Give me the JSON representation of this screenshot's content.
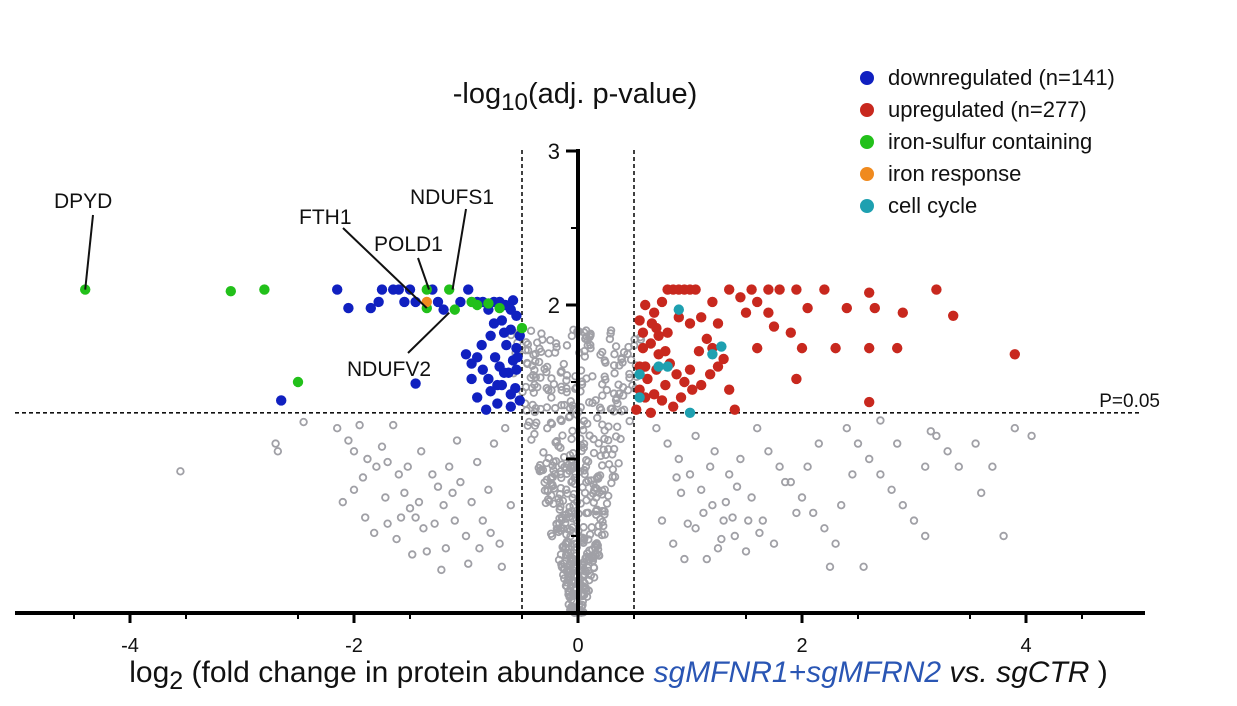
{
  "chart_data": {
    "type": "scatter",
    "title": "",
    "ylabel": {
      "prefix": "-log",
      "sub": "10",
      "suffix": "(adj.  p-value)"
    },
    "xlabel": {
      "prefix": "log",
      "sub": "2",
      "mid": " (fold change in protein abundance ",
      "cond": "sgMFNR1+sgMFRN2",
      "vs": " vs. ",
      "ctrl": "sgCTR",
      "end": " )"
    },
    "xlim": [
      -5,
      5
    ],
    "ylim": [
      0,
      3
    ],
    "x_ticks": [
      -4,
      -2,
      0,
      2,
      4
    ],
    "x_tick_labels": [
      "-4",
      "-2",
      "0",
      "2",
      "4"
    ],
    "y_ticks": [
      1,
      2,
      3
    ],
    "y_tick_labels": [
      "",
      "2",
      "3"
    ],
    "threshold_y": 1.3,
    "threshold_label": "P=0.05",
    "fold_lines": [
      -0.5,
      0.5
    ],
    "grid": false,
    "legend_position": "top-right",
    "colors": {
      "downregulated": "#1020c0",
      "upregulated": "#c8281e",
      "iron_sulfur": "#22c01a",
      "iron_response": "#f08a1e",
      "cell_cycle": "#1ea0b0",
      "background": "#a0a0a6"
    },
    "legend": [
      {
        "label": "downregulated (n=141)",
        "color_key": "downregulated"
      },
      {
        "label": "upregulated (n=277)",
        "color_key": "upregulated"
      },
      {
        "label": "iron-sulfur containing",
        "color_key": "iron_sulfur"
      },
      {
        "label": "iron response",
        "color_key": "iron_response"
      },
      {
        "label": "cell cycle",
        "color_key": "cell_cycle"
      }
    ],
    "annotations": [
      {
        "label": "DPYD",
        "x": -4.4,
        "y": 2.1
      },
      {
        "label": "FTH1",
        "x": -1.35,
        "y": 1.98
      },
      {
        "label": "POLD1",
        "x": -1.33,
        "y": 2.1
      },
      {
        "label": "NDUFS1",
        "x": -1.12,
        "y": 2.1
      },
      {
        "label": "NDUFV2",
        "x": -1.15,
        "y": 1.95
      }
    ],
    "series": {
      "downregulated": [
        [
          -2.65,
          1.38
        ],
        [
          -1.45,
          1.49
        ],
        [
          -2.15,
          2.1
        ],
        [
          -2.05,
          1.98
        ],
        [
          -1.85,
          1.98
        ],
        [
          -1.75,
          2.1
        ],
        [
          -1.65,
          2.1
        ],
        [
          -1.6,
          2.1
        ],
        [
          -1.78,
          2.02
        ],
        [
          -1.55,
          2.02
        ],
        [
          -1.5,
          2.1
        ],
        [
          -1.45,
          2.02
        ],
        [
          -1.3,
          2.1
        ],
        [
          -1.25,
          2.02
        ],
        [
          -1.2,
          1.97
        ],
        [
          -1.05,
          2.02
        ],
        [
          -0.98,
          2.1
        ],
        [
          -0.9,
          2.02
        ],
        [
          -0.85,
          2.02
        ],
        [
          -0.8,
          1.97
        ],
        [
          -0.75,
          2.02
        ],
        [
          -0.7,
          2.02
        ],
        [
          -0.65,
          2.0
        ],
        [
          -0.6,
          1.97
        ],
        [
          -0.55,
          1.93
        ],
        [
          -0.58,
          2.03
        ],
        [
          -1.0,
          1.68
        ],
        [
          -0.95,
          1.62
        ],
        [
          -0.9,
          1.66
        ],
        [
          -0.85,
          1.58
        ],
        [
          -0.8,
          1.52
        ],
        [
          -0.78,
          1.44
        ],
        [
          -0.72,
          1.36
        ],
        [
          -0.68,
          1.48
        ],
        [
          -0.62,
          1.56
        ],
        [
          -0.58,
          1.64
        ],
        [
          -0.55,
          1.72
        ],
        [
          -0.52,
          1.8
        ],
        [
          -0.75,
          1.88
        ],
        [
          -0.68,
          1.9
        ],
        [
          -0.6,
          1.84
        ],
        [
          -0.55,
          1.58
        ],
        [
          -0.9,
          1.4
        ],
        [
          -0.82,
          1.32
        ],
        [
          -0.7,
          1.6
        ],
        [
          -0.64,
          1.74
        ],
        [
          -0.56,
          1.46
        ],
        [
          -0.52,
          1.38
        ],
        [
          -0.95,
          1.52
        ],
        [
          -0.74,
          1.66
        ],
        [
          -0.66,
          1.82
        ],
        [
          -0.6,
          1.42
        ],
        [
          -0.86,
          1.74
        ],
        [
          -0.78,
          1.8
        ],
        [
          -0.54,
          1.66
        ],
        [
          -0.6,
          1.34
        ],
        [
          -0.72,
          1.48
        ],
        [
          -0.66,
          1.56
        ]
      ],
      "upregulated": [
        [
          0.52,
          1.32
        ],
        [
          0.55,
          1.45
        ],
        [
          0.6,
          1.6
        ],
        [
          0.65,
          1.75
        ],
        [
          0.7,
          1.85
        ],
        [
          0.55,
          1.9
        ],
        [
          0.6,
          2.0
        ],
        [
          0.68,
          1.95
        ],
        [
          0.75,
          2.02
        ],
        [
          0.8,
          2.1
        ],
        [
          0.85,
          2.1
        ],
        [
          0.9,
          2.1
        ],
        [
          0.95,
          2.1
        ],
        [
          1.0,
          2.1
        ],
        [
          1.05,
          2.1
        ],
        [
          0.72,
          1.8
        ],
        [
          0.78,
          1.7
        ],
        [
          0.82,
          1.62
        ],
        [
          0.88,
          1.55
        ],
        [
          0.95,
          1.5
        ],
        [
          1.02,
          1.45
        ],
        [
          1.1,
          1.48
        ],
        [
          1.18,
          1.55
        ],
        [
          1.25,
          1.6
        ],
        [
          1.3,
          1.65
        ],
        [
          0.58,
          1.72
        ],
        [
          0.62,
          1.52
        ],
        [
          0.68,
          1.42
        ],
        [
          0.75,
          1.38
        ],
        [
          0.85,
          1.34
        ],
        [
          0.92,
          1.4
        ],
        [
          1.0,
          1.58
        ],
        [
          1.08,
          1.7
        ],
        [
          1.15,
          1.78
        ],
        [
          0.6,
          1.4
        ],
        [
          0.7,
          1.58
        ],
        [
          0.8,
          1.82
        ],
        [
          0.9,
          1.92
        ],
        [
          1.0,
          1.88
        ],
        [
          0.55,
          1.6
        ],
        [
          0.65,
          1.3
        ],
        [
          0.78,
          1.48
        ],
        [
          1.35,
          2.1
        ],
        [
          1.45,
          2.05
        ],
        [
          1.55,
          2.1
        ],
        [
          1.6,
          2.02
        ],
        [
          1.7,
          2.1
        ],
        [
          1.8,
          2.1
        ],
        [
          1.95,
          2.1
        ],
        [
          2.2,
          2.1
        ],
        [
          2.6,
          2.08
        ],
        [
          2.65,
          1.98
        ],
        [
          1.5,
          1.95
        ],
        [
          1.7,
          1.95
        ],
        [
          2.05,
          1.98
        ],
        [
          2.4,
          1.98
        ],
        [
          2.9,
          1.95
        ],
        [
          3.2,
          2.1
        ],
        [
          3.35,
          1.93
        ],
        [
          1.2,
          1.72
        ],
        [
          1.6,
          1.72
        ],
        [
          2.0,
          1.72
        ],
        [
          2.3,
          1.72
        ],
        [
          2.6,
          1.72
        ],
        [
          2.85,
          1.72
        ],
        [
          3.9,
          1.68
        ],
        [
          1.9,
          1.82
        ],
        [
          1.75,
          1.86
        ],
        [
          1.35,
          1.45
        ],
        [
          1.4,
          1.32
        ],
        [
          1.95,
          1.52
        ],
        [
          2.6,
          1.37
        ],
        [
          1.25,
          1.88
        ],
        [
          1.1,
          1.92
        ],
        [
          1.2,
          2.02
        ],
        [
          0.72,
          1.68
        ],
        [
          0.58,
          1.82
        ],
        [
          0.66,
          1.88
        ]
      ],
      "iron_sulfur": [
        [
          -4.4,
          2.1
        ],
        [
          -3.1,
          2.09
        ],
        [
          -2.8,
          2.1
        ],
        [
          -2.5,
          1.5
        ],
        [
          -1.35,
          2.1
        ],
        [
          -1.35,
          1.98
        ],
        [
          -1.15,
          2.1
        ],
        [
          -1.1,
          1.97
        ],
        [
          -0.95,
          2.02
        ],
        [
          -0.9,
          2.0
        ],
        [
          -0.8,
          2.01
        ],
        [
          -0.7,
          1.98
        ],
        [
          -0.5,
          1.85
        ]
      ],
      "iron_response": [
        [
          -1.35,
          2.02
        ]
      ],
      "cell_cycle": [
        [
          0.55,
          1.4
        ],
        [
          0.72,
          1.6
        ],
        [
          0.8,
          1.6
        ],
        [
          0.9,
          1.97
        ],
        [
          1.2,
          1.68
        ],
        [
          1.28,
          1.73
        ],
        [
          1.0,
          1.3
        ],
        [
          0.55,
          1.55
        ]
      ],
      "background": [
        [
          -3.55,
          0.92
        ],
        [
          -2.7,
          1.1
        ],
        [
          -2.68,
          1.05
        ],
        [
          -2.45,
          1.24
        ],
        [
          -2.15,
          1.2
        ],
        [
          -2.05,
          1.12
        ],
        [
          -1.95,
          1.22
        ],
        [
          -1.88,
          1.0
        ],
        [
          -1.8,
          0.95
        ],
        [
          -1.75,
          1.08
        ],
        [
          -1.7,
          0.98
        ],
        [
          -1.65,
          1.22
        ],
        [
          -1.6,
          0.9
        ],
        [
          -1.55,
          0.78
        ],
        [
          -1.5,
          0.68
        ],
        [
          -1.45,
          0.62
        ],
        [
          -1.42,
          0.72
        ],
        [
          -1.38,
          0.55
        ],
        [
          -1.35,
          0.4
        ],
        [
          -1.3,
          0.9
        ],
        [
          -1.25,
          0.82
        ],
        [
          -1.2,
          0.7
        ],
        [
          -1.15,
          0.95
        ],
        [
          -1.1,
          0.6
        ],
        [
          -1.05,
          0.85
        ],
        [
          -1.0,
          0.5
        ],
        [
          -0.95,
          0.72
        ],
        [
          -0.9,
          0.98
        ],
        [
          -0.85,
          0.6
        ],
        [
          -0.8,
          0.8
        ],
        [
          -0.75,
          1.1
        ],
        [
          -0.7,
          0.45
        ],
        [
          -0.65,
          1.2
        ],
        [
          -0.6,
          0.7
        ],
        [
          -2.0,
          0.8
        ],
        [
          -1.9,
          0.62
        ],
        [
          -1.82,
          0.52
        ],
        [
          -1.72,
          0.75
        ],
        [
          -1.62,
          0.48
        ],
        [
          -1.52,
          0.95
        ],
        [
          -1.4,
          1.05
        ],
        [
          -1.28,
          0.58
        ],
        [
          -1.18,
          0.42
        ],
        [
          -1.08,
          1.12
        ],
        [
          -0.98,
          0.32
        ],
        [
          -0.88,
          0.42
        ],
        [
          -0.78,
          0.52
        ],
        [
          -0.68,
          0.3
        ],
        [
          -1.7,
          0.58
        ],
        [
          -1.58,
          0.62
        ],
        [
          -1.48,
          0.38
        ],
        [
          -1.22,
          0.28
        ],
        [
          -1.12,
          0.78
        ],
        [
          -2.1,
          0.72
        ],
        [
          -2.0,
          1.05
        ],
        [
          -1.92,
          0.88
        ],
        [
          0.7,
          1.2
        ],
        [
          0.8,
          1.1
        ],
        [
          0.9,
          1.0
        ],
        [
          1.0,
          0.9
        ],
        [
          1.1,
          0.8
        ],
        [
          1.2,
          0.7
        ],
        [
          1.3,
          0.6
        ],
        [
          1.4,
          0.5
        ],
        [
          1.5,
          0.4
        ],
        [
          1.6,
          1.2
        ],
        [
          1.7,
          1.05
        ],
        [
          1.8,
          0.95
        ],
        [
          1.9,
          0.85
        ],
        [
          2.0,
          0.75
        ],
        [
          2.1,
          0.65
        ],
        [
          2.2,
          0.55
        ],
        [
          2.3,
          0.45
        ],
        [
          2.4,
          1.2
        ],
        [
          2.5,
          1.1
        ],
        [
          2.6,
          1.0
        ],
        [
          2.7,
          0.9
        ],
        [
          2.8,
          0.8
        ],
        [
          2.9,
          0.7
        ],
        [
          3.0,
          0.6
        ],
        [
          3.1,
          0.5
        ],
        [
          3.2,
          1.15
        ],
        [
          3.3,
          1.05
        ],
        [
          3.4,
          0.95
        ],
        [
          3.6,
          0.78
        ],
        [
          3.8,
          0.5
        ],
        [
          0.75,
          0.6
        ],
        [
          0.85,
          0.45
        ],
        [
          0.95,
          0.35
        ],
        [
          1.05,
          1.15
        ],
        [
          1.15,
          0.35
        ],
        [
          1.25,
          0.42
        ],
        [
          1.35,
          0.9
        ],
        [
          1.45,
          1.0
        ],
        [
          1.55,
          0.75
        ],
        [
          1.65,
          0.6
        ],
        [
          1.75,
          0.45
        ],
        [
          1.85,
          0.85
        ],
        [
          1.95,
          0.65
        ],
        [
          2.05,
          0.95
        ],
        [
          2.15,
          1.1
        ],
        [
          2.25,
          0.3
        ],
        [
          2.35,
          0.7
        ],
        [
          2.45,
          0.9
        ],
        [
          2.55,
          0.3
        ],
        [
          1.05,
          0.55
        ],
        [
          1.12,
          0.65
        ],
        [
          1.22,
          1.05
        ],
        [
          1.32,
          0.72
        ],
        [
          1.42,
          0.82
        ],
        [
          1.52,
          0.6
        ],
        [
          1.62,
          0.52
        ],
        [
          0.92,
          0.78
        ],
        [
          0.98,
          0.58
        ],
        [
          0.88,
          0.88
        ],
        [
          1.18,
          0.95
        ],
        [
          1.28,
          0.48
        ],
        [
          1.38,
          0.62
        ],
        [
          2.7,
          1.25
        ],
        [
          2.85,
          1.1
        ],
        [
          3.1,
          0.95
        ],
        [
          3.15,
          1.18
        ],
        [
          3.55,
          1.1
        ],
        [
          3.9,
          1.2
        ],
        [
          4.05,
          1.15
        ],
        [
          3.7,
          0.95
        ]
      ]
    }
  }
}
